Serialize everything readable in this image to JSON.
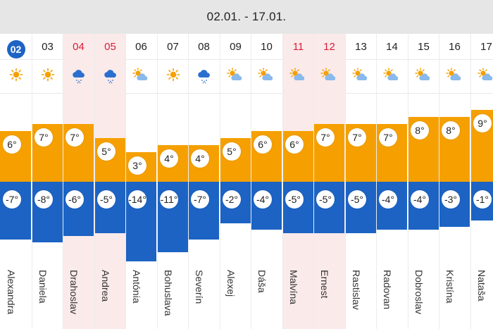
{
  "header": {
    "date_range": "02.01. - 17.01."
  },
  "colors": {
    "high": "#f5a000",
    "low": "#1c63c4",
    "today": "#1e63c4",
    "weekend_text": "#d61f3a",
    "weekend_bg": "#fbeaea"
  },
  "days": [
    {
      "num": "02",
      "high": "6°",
      "low": "-7°",
      "high_val": 6,
      "low_val": -7,
      "name": "Alexandra",
      "icon": "sun-icon",
      "today": true
    },
    {
      "num": "03",
      "high": "7°",
      "low": "-8°",
      "high_val": 7,
      "low_val": -8,
      "name": "Daniela",
      "icon": "sun-icon"
    },
    {
      "num": "04",
      "high": "7°",
      "low": "-6°",
      "high_val": 7,
      "low_val": -6,
      "name": "Drahoslav",
      "icon": "cloud-snow-icon",
      "weekend": true
    },
    {
      "num": "05",
      "high": "5°",
      "low": "-5°",
      "high_val": 5,
      "low_val": -5,
      "name": "Andrea",
      "icon": "cloud-snow-icon",
      "weekend": true
    },
    {
      "num": "06",
      "high": "3°",
      "low": "-14°",
      "high_val": 3,
      "low_val": -14,
      "name": "Antónia",
      "icon": "sun-cloud-icon"
    },
    {
      "num": "07",
      "high": "4°",
      "low": "-11°",
      "high_val": 4,
      "low_val": -11,
      "name": "Bohuslava",
      "icon": "sun-icon"
    },
    {
      "num": "08",
      "high": "4°",
      "low": "-7°",
      "high_val": 4,
      "low_val": -7,
      "name": "Severín",
      "icon": "cloud-snow-icon"
    },
    {
      "num": "09",
      "high": "5°",
      "low": "-2°",
      "high_val": 5,
      "low_val": -2,
      "name": "Alexej",
      "icon": "sun-cloud-icon"
    },
    {
      "num": "10",
      "high": "6°",
      "low": "-4°",
      "high_val": 6,
      "low_val": -4,
      "name": "Dáša",
      "icon": "sun-cloud-icon"
    },
    {
      "num": "11",
      "high": "6°",
      "low": "-5°",
      "high_val": 6,
      "low_val": -5,
      "name": "Malvína",
      "icon": "sun-cloud-icon",
      "weekend": true
    },
    {
      "num": "12",
      "high": "7°",
      "low": "-5°",
      "high_val": 7,
      "low_val": -5,
      "name": "Ernest",
      "icon": "sun-cloud-icon",
      "weekend": true
    },
    {
      "num": "13",
      "high": "7°",
      "low": "-5°",
      "high_val": 7,
      "low_val": -5,
      "name": "Rastislav",
      "icon": "sun-cloud-icon"
    },
    {
      "num": "14",
      "high": "7°",
      "low": "-4°",
      "high_val": 7,
      "low_val": -4,
      "name": "Radovan",
      "icon": "sun-cloud-icon"
    },
    {
      "num": "15",
      "high": "8°",
      "low": "-4°",
      "high_val": 8,
      "low_val": -4,
      "name": "Dobroslav",
      "icon": "sun-cloud-icon"
    },
    {
      "num": "16",
      "high": "8°",
      "low": "-3°",
      "high_val": 8,
      "low_val": -3,
      "name": "Kristína",
      "icon": "sun-cloud-icon"
    },
    {
      "num": "17",
      "high": "9°",
      "low": "-1°",
      "high_val": 9,
      "low_val": -1,
      "name": "Nataša",
      "icon": "sun-cloud-icon"
    }
  ]
}
